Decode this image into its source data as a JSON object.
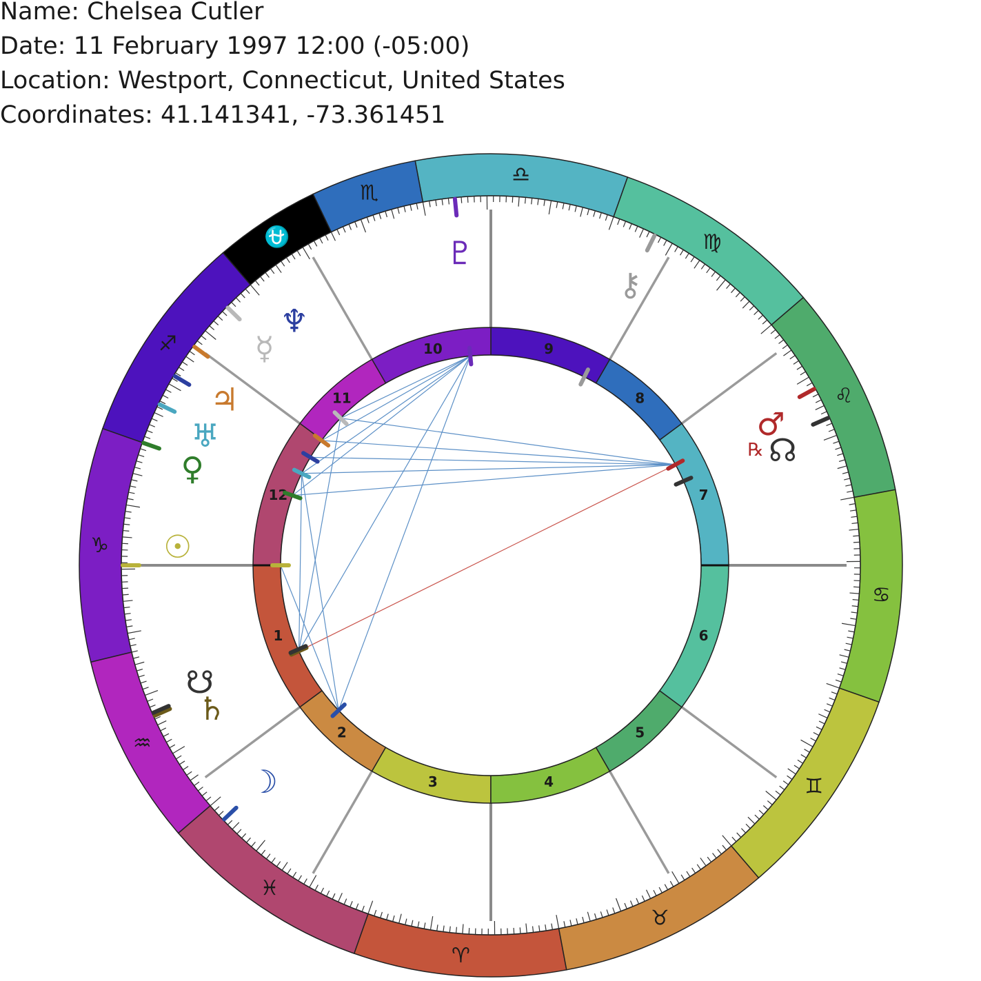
{
  "header": {
    "name": "Name: Chelsea Cutler",
    "date": "Date: 11 February 1997 12:00 (-05:00)",
    "location": "Location: Westport, Connecticut, United States",
    "coordinates": "Coordinates: 41.141341, -73.361451"
  },
  "wheel": {
    "ascendant_longitude": 289.4,
    "signs": [
      {
        "glyph": "♈",
        "name": "aries",
        "color": "#c4553b"
      },
      {
        "glyph": "♉",
        "name": "taurus",
        "color": "#cb8a42"
      },
      {
        "glyph": "♊",
        "name": "gemini",
        "color": "#bcc43e"
      },
      {
        "glyph": "♋",
        "name": "cancer",
        "color": "#85c13f"
      },
      {
        "glyph": "♌",
        "name": "leo",
        "color": "#4fab6c"
      },
      {
        "glyph": "♍",
        "name": "virgo",
        "color": "#55c09e"
      },
      {
        "glyph": "♎",
        "name": "libra",
        "color": "#54b4c3"
      },
      {
        "glyph": "♏",
        "name": "scorpio",
        "color": "#2f6ebc"
      },
      {
        "glyph": "⛎",
        "name": "ophiuchus",
        "color": "#000000"
      },
      {
        "glyph": "♐",
        "name": "sagittarius",
        "color": "#4d12bd"
      },
      {
        "glyph": "♑",
        "name": "capricorn",
        "color": "#7c1ec4"
      },
      {
        "glyph": "♒",
        "name": "aquarius",
        "color": "#b126be"
      },
      {
        "glyph": "♓",
        "name": "pisces",
        "color": "#b0476f"
      }
    ],
    "sign_boundaries": [
      {
        "start": 0,
        "end": 30
      },
      {
        "start": 30,
        "end": 60
      },
      {
        "start": 60,
        "end": 90
      },
      {
        "start": 90,
        "end": 120
      },
      {
        "start": 120,
        "end": 150
      },
      {
        "start": 150,
        "end": 180
      },
      {
        "start": 180,
        "end": 210
      },
      {
        "start": 210,
        "end": 225
      },
      {
        "start": 225,
        "end": 240
      },
      {
        "start": 240,
        "end": 270
      },
      {
        "start": 270,
        "end": 303
      },
      {
        "start": 303,
        "end": 330
      },
      {
        "start": 330,
        "end": 360
      }
    ]
  },
  "houses": [
    {
      "label": "1",
      "cusp": 289.4,
      "color": "#c4553b"
    },
    {
      "label": "2",
      "cusp": 326.0,
      "color": "#cb8a42"
    },
    {
      "label": "3",
      "cusp": 349.4,
      "color": "#bcc43e"
    },
    {
      "label": "4",
      "cusp": 19.4,
      "color": "#85c13f"
    },
    {
      "label": "5",
      "cusp": 49.4,
      "color": "#4fab6c"
    },
    {
      "label": "6",
      "cusp": 72.8,
      "color": "#55c09e"
    },
    {
      "label": "7",
      "cusp": 109.4,
      "color": "#54b4c3"
    },
    {
      "label": "8",
      "cusp": 146.0,
      "color": "#2f6ebc"
    },
    {
      "label": "9",
      "cusp": 169.4,
      "color": "#4d12bd"
    },
    {
      "label": "10",
      "cusp": 199.4,
      "color": "#7c1ec4"
    },
    {
      "label": "11",
      "cusp": 229.4,
      "color": "#b126be"
    },
    {
      "label": "12",
      "cusp": 252.8,
      "color": "#b0476f"
    }
  ],
  "planets": [
    {
      "name": "sun",
      "glyph": "☉",
      "longitude": 289.4,
      "glyph_longitude": 286.0,
      "color": "#b8b23a",
      "retrograde": false
    },
    {
      "name": "moon",
      "glyph": "☽",
      "longitude": 333.0,
      "glyph_longitude": 333.0,
      "color": "#2a4fa8",
      "retrograde": false
    },
    {
      "name": "mercury",
      "glyph": "☿",
      "longitude": 245.0,
      "glyph_longitude": 245.6,
      "color": "#b9b9b9",
      "retrograde": false
    },
    {
      "name": "venus",
      "glyph": "♀",
      "longitude": 270.0,
      "glyph_longitude": 271.4,
      "color": "#2f7d2b",
      "retrograde": false
    },
    {
      "name": "mars",
      "glyph": "♂",
      "longitude": 138.0,
      "glyph_longitude": 136.2,
      "color": "#b0292a",
      "retrograde": true
    },
    {
      "name": "jupiter",
      "glyph": "♃",
      "longitude": 253.0,
      "glyph_longitude": 257.5,
      "color": "#c87a2e",
      "retrograde": false
    },
    {
      "name": "saturn",
      "glyph": "♄",
      "longitude": 313.5,
      "glyph_longitude": 316.6,
      "color": "#6b5a1a",
      "retrograde": false
    },
    {
      "name": "uranus",
      "glyph": "♅",
      "longitude": 263.5,
      "glyph_longitude": 265.0,
      "color": "#4aa7c0",
      "retrograde": false
    },
    {
      "name": "neptune",
      "glyph": "♆",
      "longitude": 258.5,
      "glyph_longitude": 238.2,
      "color": "#2c3fa0",
      "retrograde": false
    },
    {
      "name": "pluto",
      "glyph": "♇",
      "longitude": 205.0,
      "glyph_longitude": 205.0,
      "color": "#6b2bb8",
      "retrograde": false
    },
    {
      "name": "chiron",
      "glyph": "⚷",
      "longitude": 173.0,
      "glyph_longitude": 173.0,
      "color": "#9a9a9a",
      "retrograde": false
    },
    {
      "name": "north-node",
      "glyph": "☊",
      "longitude": 133.0,
      "glyph_longitude": 130.9,
      "color": "#333333",
      "retrograde": false
    },
    {
      "name": "south-node",
      "glyph": "☋",
      "longitude": 313.0,
      "glyph_longitude": 311.3,
      "color": "#333333",
      "retrograde": false
    }
  ],
  "retrograde_glyph": "℞",
  "aspects": [
    {
      "from": "pluto",
      "to": "jupiter",
      "color": "#5b8fc6"
    },
    {
      "from": "pluto",
      "to": "uranus",
      "color": "#5b8fc6"
    },
    {
      "from": "pluto",
      "to": "mercury",
      "color": "#5b8fc6"
    },
    {
      "from": "pluto",
      "to": "venus",
      "color": "#5b8fc6"
    },
    {
      "from": "pluto",
      "to": "saturn",
      "color": "#5b8fc6"
    },
    {
      "from": "pluto",
      "to": "moon",
      "color": "#5b8fc6"
    },
    {
      "from": "mars",
      "to": "neptune",
      "color": "#5b8fc6"
    },
    {
      "from": "mars",
      "to": "jupiter",
      "color": "#5b8fc6"
    },
    {
      "from": "mars",
      "to": "uranus",
      "color": "#5b8fc6"
    },
    {
      "from": "mars",
      "to": "mercury",
      "color": "#5b8fc6"
    },
    {
      "from": "mars",
      "to": "venus",
      "color": "#5b8fc6"
    },
    {
      "from": "mars",
      "to": "saturn",
      "color": "#c9534b"
    },
    {
      "from": "saturn",
      "to": "uranus",
      "color": "#5b8fc6"
    },
    {
      "from": "saturn",
      "to": "mercury",
      "color": "#5b8fc6"
    },
    {
      "from": "moon",
      "to": "uranus",
      "color": "#5b8fc6"
    },
    {
      "from": "moon",
      "to": "sun",
      "color": "#5b8fc6"
    }
  ],
  "colors": {
    "house_line": "#9a9a9a",
    "tick": "#333333",
    "wheel_border": "#222222"
  }
}
